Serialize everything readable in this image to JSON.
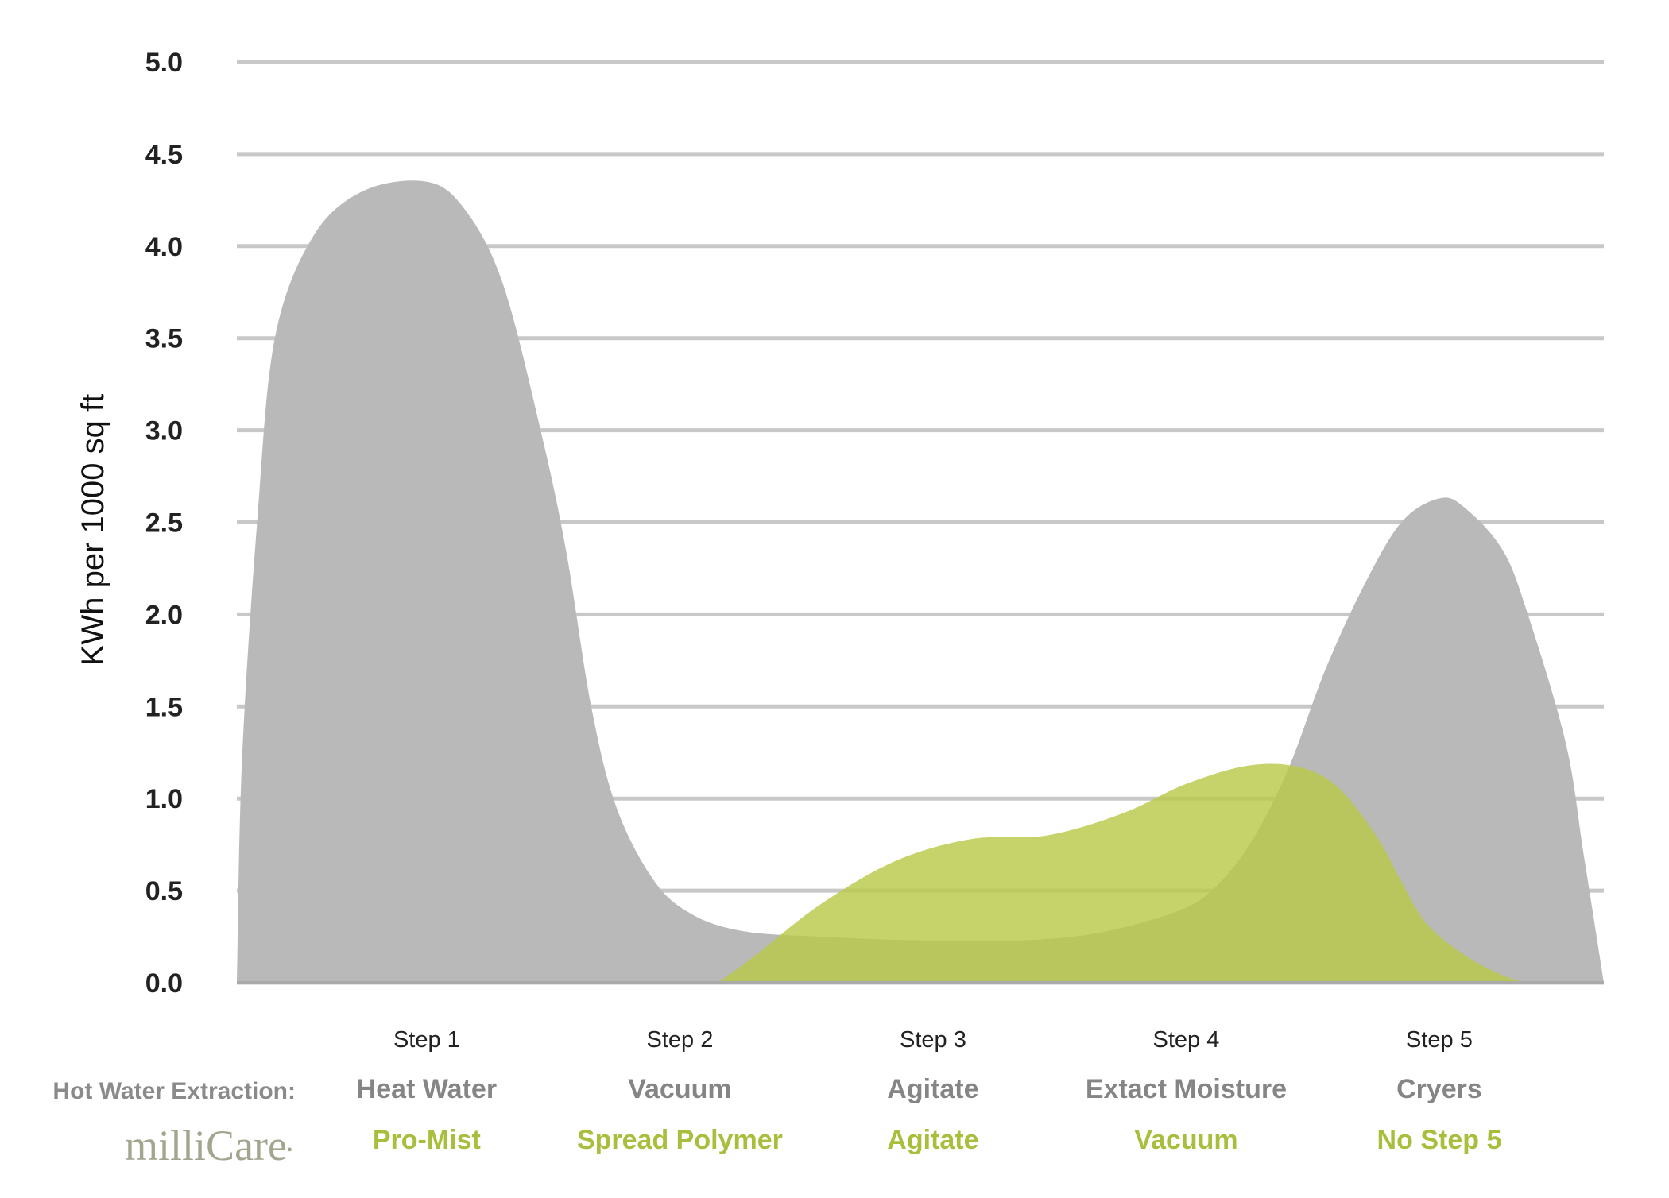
{
  "chart_data": {
    "type": "area",
    "ylabel": "KWh per 1000 sq ft",
    "xlabel": "",
    "ylim": [
      0,
      5
    ],
    "yticks": [
      "0.0",
      "0.5",
      "1.0",
      "1.5",
      "2.0",
      "2.5",
      "3.0",
      "3.5",
      "4.0",
      "4.5",
      "5.0"
    ],
    "grid": true,
    "categories": [
      "Step 1",
      "Step 2",
      "Step 3",
      "Step 4",
      "Step 5"
    ],
    "rows": [
      {
        "title": "Hot Water Extraction:",
        "labels": [
          "Heat Water",
          "Vacuum",
          "Agitate",
          "Extact Moisture",
          "Cryers"
        ],
        "color": "#8a8a8a"
      },
      {
        "title": "milliCare",
        "title_mark": "•",
        "labels": [
          "Pro-Mist",
          "Spread Polymer",
          "Agitate",
          "Vacuum",
          "No Step 5"
        ],
        "color": "#a9be3c"
      }
    ],
    "series": [
      {
        "fill": "#b9b9b9",
        "points": [
          [
            0.0,
            0.0
          ],
          [
            0.02,
            1.2
          ],
          [
            0.08,
            2.5
          ],
          [
            0.15,
            3.5
          ],
          [
            0.3,
            4.05
          ],
          [
            0.5,
            4.3
          ],
          [
            0.75,
            4.35
          ],
          [
            0.9,
            4.2
          ],
          [
            1.05,
            3.8
          ],
          [
            1.2,
            3.0
          ],
          [
            1.3,
            2.35
          ],
          [
            1.4,
            1.5
          ],
          [
            1.5,
            0.95
          ],
          [
            1.65,
            0.55
          ],
          [
            1.8,
            0.37
          ],
          [
            2.0,
            0.28
          ],
          [
            2.3,
            0.25
          ],
          [
            2.7,
            0.23
          ],
          [
            3.1,
            0.23
          ],
          [
            3.4,
            0.27
          ],
          [
            3.7,
            0.38
          ],
          [
            3.85,
            0.5
          ],
          [
            4.0,
            0.75
          ],
          [
            4.15,
            1.15
          ],
          [
            4.3,
            1.7
          ],
          [
            4.45,
            2.15
          ],
          [
            4.6,
            2.5
          ],
          [
            4.75,
            2.63
          ],
          [
            4.85,
            2.58
          ],
          [
            5.0,
            2.35
          ],
          [
            5.1,
            2.0
          ],
          [
            5.25,
            1.3
          ],
          [
            5.32,
            0.7
          ],
          [
            5.4,
            0.0
          ]
        ]
      },
      {
        "fill": "#b9c94a",
        "points": [
          [
            1.9,
            0.0
          ],
          [
            2.05,
            0.15
          ],
          [
            2.3,
            0.42
          ],
          [
            2.6,
            0.66
          ],
          [
            2.9,
            0.78
          ],
          [
            3.2,
            0.8
          ],
          [
            3.5,
            0.92
          ],
          [
            3.75,
            1.08
          ],
          [
            4.0,
            1.18
          ],
          [
            4.2,
            1.17
          ],
          [
            4.35,
            1.06
          ],
          [
            4.5,
            0.8
          ],
          [
            4.6,
            0.55
          ],
          [
            4.7,
            0.32
          ],
          [
            4.85,
            0.15
          ],
          [
            5.0,
            0.04
          ],
          [
            5.1,
            0.0
          ]
        ]
      }
    ]
  }
}
